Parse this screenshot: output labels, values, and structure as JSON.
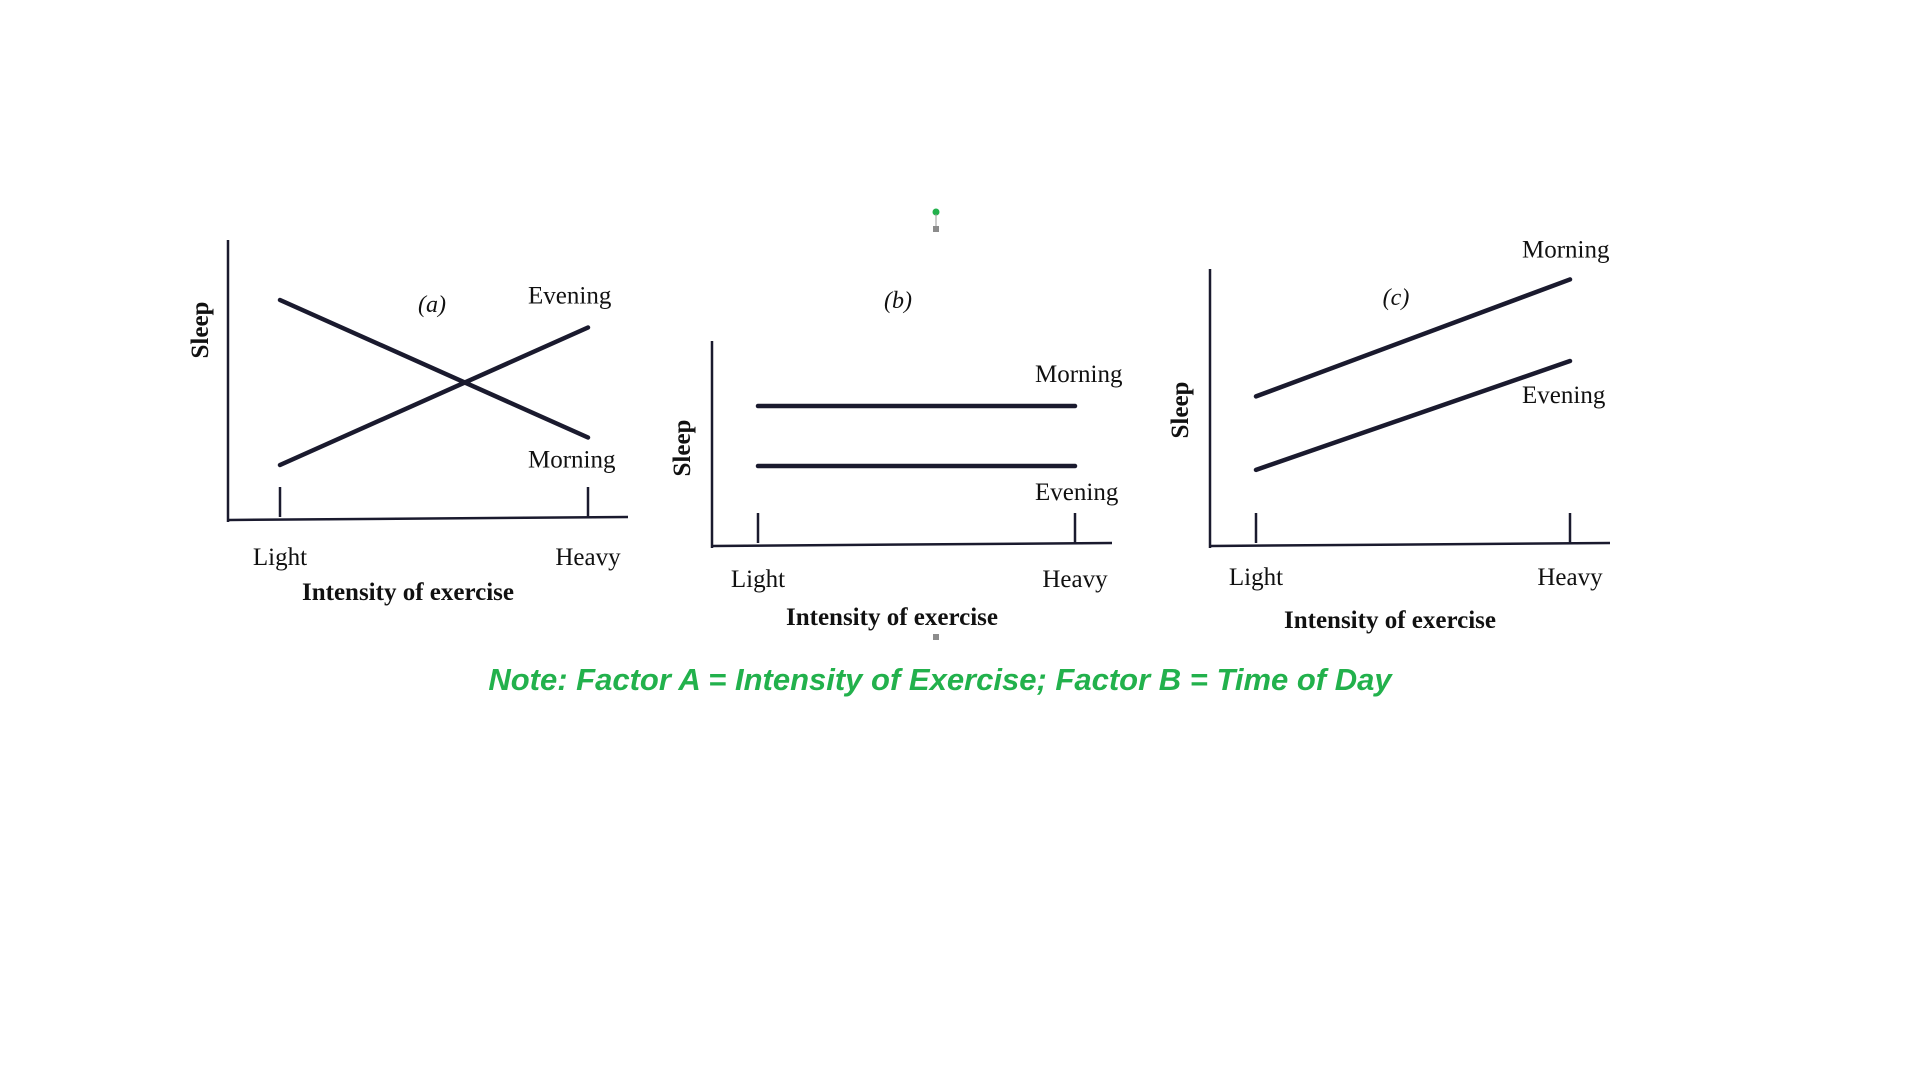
{
  "chart_data": [
    {
      "type": "line",
      "panel_label": "(a)",
      "ylabel": "Sleep",
      "xlabel": "Intensity of exercise",
      "categories": [
        "Light",
        "Heavy"
      ],
      "series": [
        {
          "name": "Morning",
          "values": [
            8,
            3
          ]
        },
        {
          "name": "Evening",
          "values": [
            2,
            7
          ]
        }
      ],
      "ylim": [
        0,
        10
      ],
      "grid": false
    },
    {
      "type": "line",
      "panel_label": "(b)",
      "ylabel": "Sleep",
      "xlabel": "Intensity of exercise",
      "categories": [
        "Light",
        "Heavy"
      ],
      "series": [
        {
          "name": "Morning",
          "values": [
            7,
            7
          ]
        },
        {
          "name": "Evening",
          "values": [
            4,
            4
          ]
        }
      ],
      "ylim": [
        0,
        10
      ],
      "grid": false
    },
    {
      "type": "line",
      "panel_label": "(c)",
      "ylabel": "Sleep",
      "xlabel": "Intensity of exercise",
      "categories": [
        "Light",
        "Heavy"
      ],
      "series": [
        {
          "name": "Morning",
          "values": [
            5.5,
            9.8
          ]
        },
        {
          "name": "Evening",
          "values": [
            2.8,
            6.8
          ]
        }
      ],
      "ylim": [
        0,
        10
      ],
      "grid": false
    }
  ],
  "note": "Note: Factor A = Intensity of Exercise; Factor B = Time of Day",
  "colors": {
    "lines": "#1a1a2e",
    "note": "#22b14c"
  }
}
